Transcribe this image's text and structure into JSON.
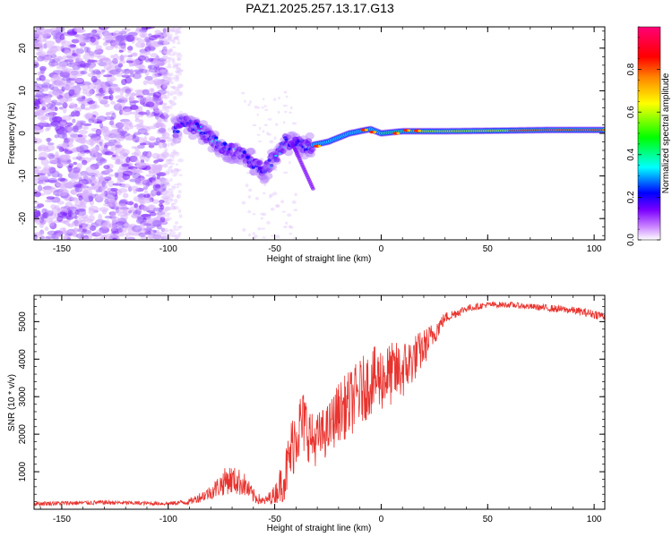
{
  "figure": {
    "title": "PAZ1.2025.257.13.17.G13"
  },
  "chart_data": [
    {
      "type": "heatmap",
      "title": "PAZ1.2025.257.13.17.G13",
      "xlabel": "Height of straight line (km)",
      "ylabel": "Frequency (Hz)",
      "xlim": [
        -163,
        105
      ],
      "ylim": [
        -25,
        25
      ],
      "x_ticks": [
        -150,
        -100,
        -50,
        0,
        50,
        100
      ],
      "y_ticks": [
        -20,
        -10,
        0,
        10,
        20
      ],
      "colorbar": {
        "label": "Normalized spectral amplitude",
        "range": [
          0,
          1
        ],
        "ticks": [
          0.0,
          0.2,
          0.4,
          0.6,
          0.8
        ],
        "colors": [
          "#ffffff",
          "#cc88ff",
          "#7b00ff",
          "#0000ff",
          "#00ffff",
          "#00ff00",
          "#ffff00",
          "#ff8800",
          "#ff0000",
          "#ff0088"
        ]
      },
      "ridge": {
        "description_points_x": [
          -95,
          -85,
          -75,
          -65,
          -60,
          -55,
          -45,
          -35,
          -25,
          -15,
          -5,
          0,
          10,
          20,
          30,
          50,
          80,
          105
        ],
        "description_points_y": [
          3,
          1,
          -3,
          -5,
          -7,
          -9,
          -2,
          -3,
          -2,
          0,
          1,
          0,
          0.5,
          0.5,
          0.5,
          0.6,
          0.8,
          0.8
        ]
      },
      "grid": false
    },
    {
      "type": "line",
      "xlabel": "Height of straight line (km)",
      "ylabel": "SNR (10 * v/v)",
      "xlim": [
        -163,
        105
      ],
      "ylim": [
        0,
        5700
      ],
      "x_ticks": [
        -150,
        -100,
        -50,
        0,
        50,
        100
      ],
      "y_ticks": [
        1000,
        2000,
        3000,
        4000,
        5000
      ],
      "color": "#e8332e",
      "envelope": {
        "x": [
          -163,
          -130,
          -100,
          -90,
          -80,
          -72,
          -65,
          -60,
          -55,
          -50,
          -45,
          -40,
          -36,
          -32,
          -25,
          -20,
          -15,
          -10,
          -5,
          0,
          10,
          20,
          30,
          40,
          50,
          60,
          70,
          80,
          90,
          100,
          105
        ],
        "mean": [
          150,
          180,
          150,
          200,
          450,
          800,
          700,
          350,
          200,
          400,
          900,
          2100,
          2300,
          1800,
          2100,
          2600,
          2800,
          3100,
          3400,
          3500,
          3700,
          4300,
          5100,
          5350,
          5450,
          5450,
          5400,
          5350,
          5300,
          5200,
          5150
        ],
        "spread": [
          60,
          60,
          50,
          80,
          200,
          400,
          350,
          200,
          100,
          250,
          700,
          1000,
          900,
          700,
          700,
          800,
          900,
          900,
          900,
          900,
          800,
          500,
          150,
          100,
          80,
          80,
          80,
          100,
          100,
          120,
          120
        ]
      },
      "grid": false
    }
  ]
}
